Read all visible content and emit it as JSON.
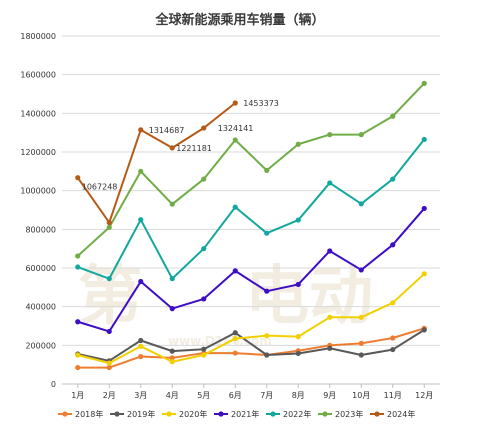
{
  "chart_data": {
    "type": "line",
    "title": "全球新能源乘用车销量（辆）",
    "xlabel": "",
    "ylabel": "",
    "ylim": [
      0,
      1800000
    ],
    "yticks": [
      "0",
      "200000",
      "400000",
      "600000",
      "800000",
      "1000000",
      "1200000",
      "1400000",
      "1600000",
      "1800000"
    ],
    "categories": [
      "1月",
      "2月",
      "3月",
      "4月",
      "5月",
      "6月",
      "7月",
      "8月",
      "9月",
      "10月",
      "11月",
      "12月"
    ],
    "grid": true,
    "legend_position": "bottom",
    "series": [
      {
        "name": "2018年",
        "color": "#ed7d31",
        "values": [
          85000,
          85000,
          142000,
          135000,
          160000,
          160000,
          150000,
          172000,
          200000,
          210000,
          238000,
          288000
        ]
      },
      {
        "name": "2019年",
        "color": "#595959",
        "values": [
          155000,
          120000,
          225000,
          170000,
          180000,
          265000,
          150000,
          158000,
          185000,
          150000,
          178000,
          280000
        ]
      },
      {
        "name": "2020年",
        "color": "#f2d000",
        "values": [
          150000,
          108000,
          195000,
          115000,
          150000,
          235000,
          250000,
          245000,
          345000,
          345000,
          420000,
          570000
        ]
      },
      {
        "name": "2021年",
        "color": "#3d0ec6",
        "values": [
          322000,
          272000,
          530000,
          390000,
          440000,
          585000,
          480000,
          515000,
          688000,
          590000,
          720000,
          908000
        ]
      },
      {
        "name": "2022年",
        "color": "#13a89e",
        "values": [
          605000,
          545000,
          850000,
          545000,
          700000,
          915000,
          780000,
          848000,
          1040000,
          932000,
          1060000,
          1265000
        ]
      },
      {
        "name": "2023年",
        "color": "#70ad47",
        "values": [
          662000,
          810000,
          1100000,
          930000,
          1060000,
          1262000,
          1105000,
          1240000,
          1290000,
          1290000,
          1385000,
          1555000
        ]
      },
      {
        "name": "2024年",
        "color": "#b55a17",
        "values": [
          1067248,
          835000,
          1314687,
          1221181,
          1324141,
          1453373,
          null,
          null,
          null,
          null,
          null,
          null
        ]
      }
    ],
    "annotations": [
      {
        "series": "2024年",
        "index": 0,
        "text": "1067248"
      },
      {
        "series": "2024年",
        "index": 2,
        "text": "1314687"
      },
      {
        "series": "2024年",
        "index": 3,
        "text": "1221181"
      },
      {
        "series": "2024年",
        "index": 4,
        "text": "1324141"
      },
      {
        "series": "2024年",
        "index": 5,
        "text": "1453373"
      }
    ]
  },
  "watermark": {
    "text_left": "第",
    "text_right": "电动",
    "url": "www.D1EV.com"
  }
}
